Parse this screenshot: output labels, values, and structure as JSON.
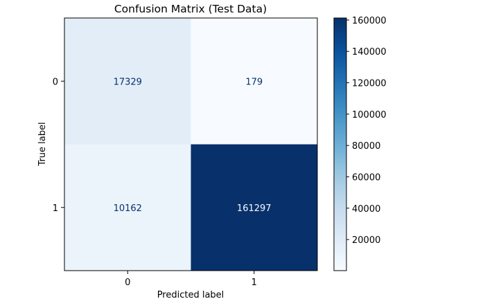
{
  "chart_data": {
    "type": "heatmap",
    "title": "Confusion Matrix (Test Data)",
    "xlabel": "Predicted label",
    "ylabel": "True label",
    "x_categories": [
      "0",
      "1"
    ],
    "y_categories": [
      "0",
      "1"
    ],
    "matrix": [
      [
        17329,
        179
      ],
      [
        10162,
        161297
      ]
    ],
    "colormap": "Blues",
    "colormap_range": [
      179,
      161297
    ],
    "colorbar_ticks": [
      20000,
      40000,
      60000,
      80000,
      100000,
      120000,
      140000,
      160000
    ],
    "colors": {
      "low": "#f7fbff",
      "high": "#08306b"
    }
  }
}
